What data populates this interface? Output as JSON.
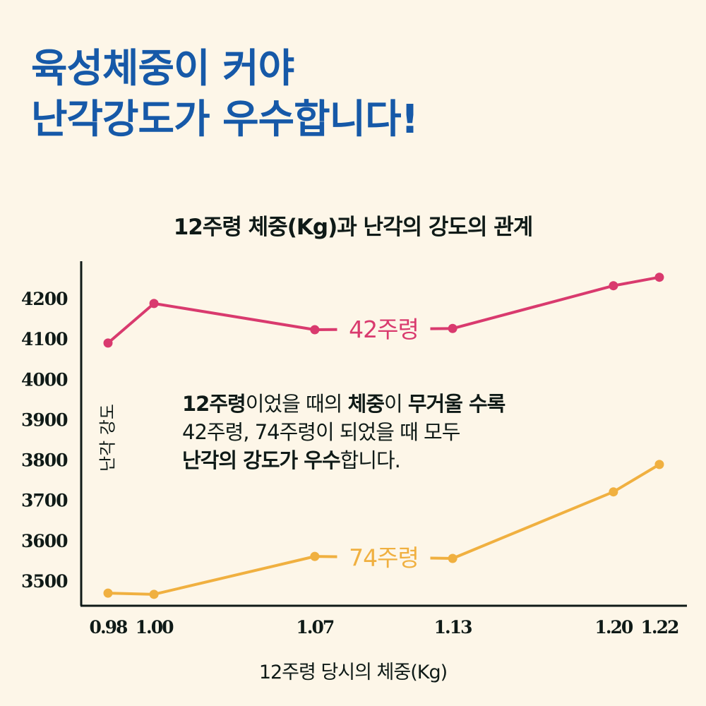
{
  "headline": {
    "line1": "육성체중이 커야",
    "line2": "난각강도가 우수합니다!"
  },
  "note": {
    "l1a": "12주령",
    "l1b": "이었을 때의 ",
    "l1c": "체중",
    "l1d": "이 ",
    "l1e": "무거울 수록",
    "l2": "42주령, 74주령이 되었을 때 모두",
    "l3a": "난각의 강도가 우수",
    "l3b": "합니다."
  },
  "colors": {
    "headline": "#1659a8",
    "week42": "#d93a6e",
    "week74": "#f0b040",
    "background": "#fdf6e8"
  },
  "chart_data": {
    "type": "line",
    "title": "12주령 체중(Kg)과 난각의 강도의 관계",
    "xlabel": "12주령 당시의 체중(Kg)",
    "ylabel": "난각 강도",
    "x": [
      0.98,
      1.0,
      1.07,
      1.13,
      1.2,
      1.22
    ],
    "x_tick_labels": [
      "0.98",
      "1.00",
      "1.07",
      "1.13",
      "1.20",
      "1.22"
    ],
    "y_ticks": [
      4200,
      4100,
      4000,
      3900,
      3800,
      3700,
      3600,
      3500
    ],
    "y_tick_labels": [
      "4200",
      "4100",
      "4000",
      "3900",
      "3800",
      "3700",
      "3600",
      "3500"
    ],
    "series": [
      {
        "name": "42주령",
        "values": [
          4090,
          4188,
          4123,
          4126,
          4232,
          4253
        ]
      },
      {
        "name": "74주령",
        "values": [
          3470,
          3467,
          3561,
          3556,
          3721,
          3789
        ]
      }
    ],
    "grid": false,
    "legend": "inline labels on lines"
  }
}
